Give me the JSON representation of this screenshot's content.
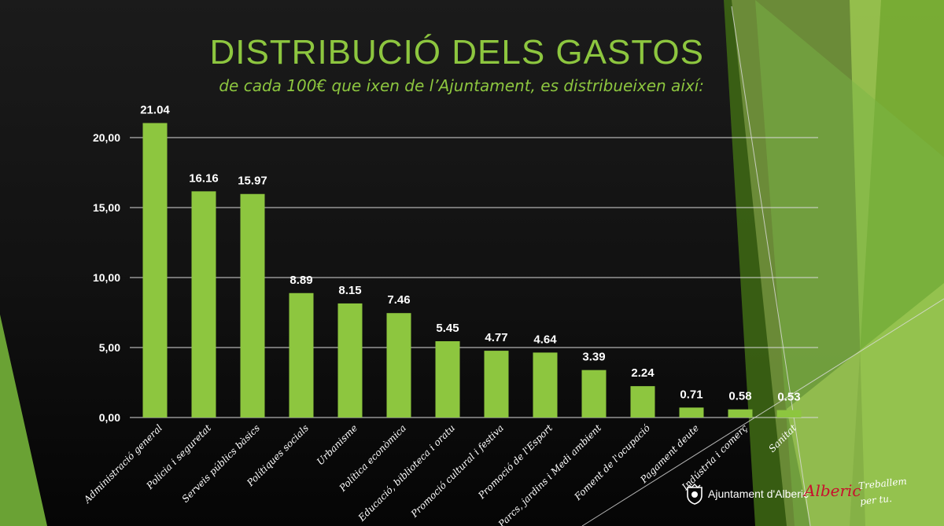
{
  "title": "DISTRIBUCIÓ DELS GASTOS",
  "subtitle": "de cada 100€ que ixen de l’Ajuntament, es distribueixen així:",
  "footer": {
    "org_name": "Ajuntament d'Alberic",
    "logo_text": "Alberic",
    "slogan": "Treballem per tu."
  },
  "colors": {
    "bar": "#8dc63f",
    "title": "#8dc63f",
    "accent_light": "#c9e07a",
    "accent_dark": "#3f6b14"
  },
  "icons": {
    "crest": "town-crest-icon"
  },
  "chart_data": {
    "type": "bar",
    "categories": [
      "Administració general",
      "Policia i seguretat",
      "Serveis públics bàsics",
      "Polítiques socials",
      "Urbanisme",
      "Política econòmica",
      "Educació, biblioteca i oratu",
      "Promoció cultural i festiva",
      "Promoció de l'Esport",
      "Parcs, jardins i Medi ambient",
      "Foment de l'ocupació",
      "Pagament deute",
      "Indústria i comerç",
      "Sanitat"
    ],
    "values": [
      21.04,
      16.16,
      15.97,
      8.89,
      8.15,
      7.46,
      5.45,
      4.77,
      4.64,
      3.39,
      2.24,
      0.71,
      0.58,
      0.53
    ],
    "value_labels": [
      "21.04",
      "16.16",
      "15.97",
      "8.89",
      "8.15",
      "7.46",
      "5.45",
      "4.77",
      "4.64",
      "3.39",
      "2.24",
      "0.71",
      "0.58",
      "0.53"
    ],
    "yticks": [
      "0,00",
      "5,00",
      "10,00",
      "15,00",
      "20,00"
    ],
    "ylim": [
      0,
      20
    ],
    "grid": true,
    "xlabel": "",
    "ylabel": ""
  }
}
